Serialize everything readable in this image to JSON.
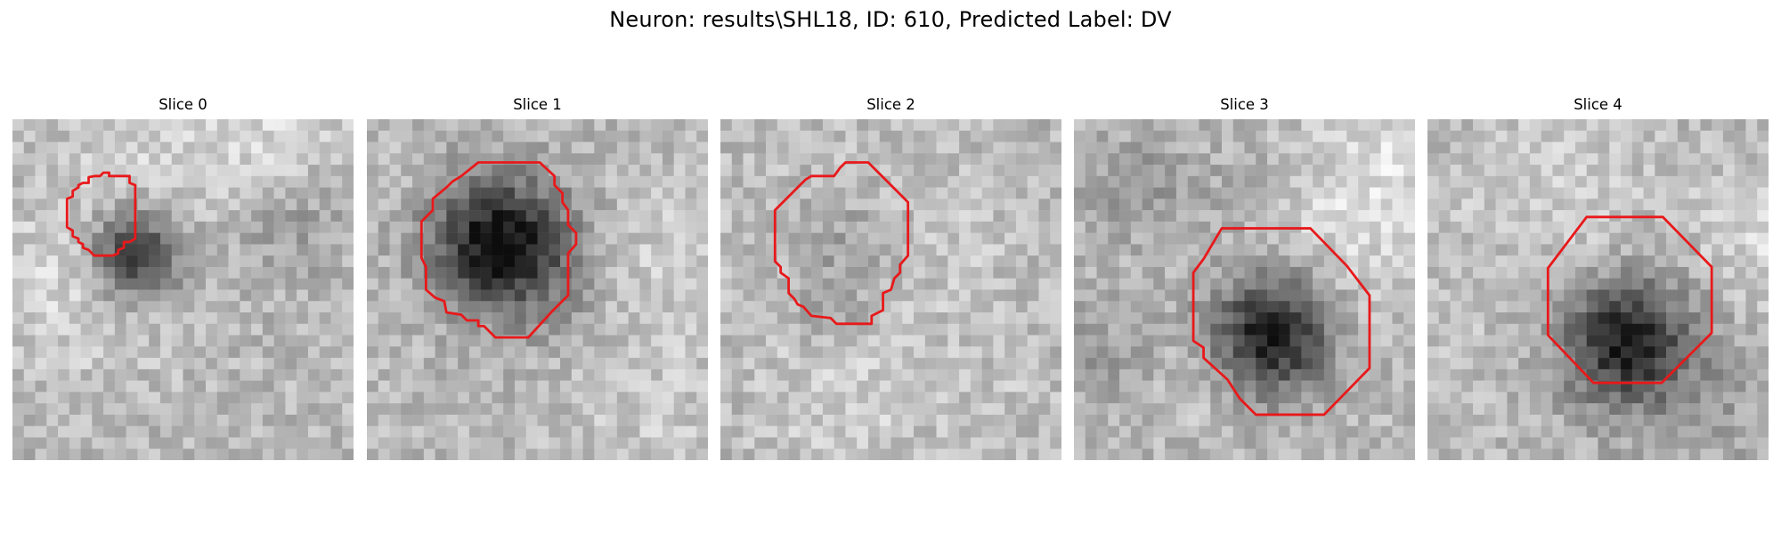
{
  "figure": {
    "title": "Neuron: results\\SHL18, ID: 610, Predicted Label: DV"
  },
  "contour_color": "#e8191b",
  "slices": [
    {
      "title": "Slice 0",
      "dark_center": [
        0.36,
        0.4
      ],
      "dark_radius": 0.13,
      "contrast": 0.75
    },
    {
      "title": "Slice 1",
      "dark_center": [
        0.38,
        0.36
      ],
      "dark_radius": 0.18,
      "contrast": 0.85
    },
    {
      "title": "Slice 2",
      "dark_center": [
        0.36,
        0.37
      ],
      "dark_radius": 0.2,
      "contrast": 0.3
    },
    {
      "title": "Slice 3",
      "dark_center": [
        0.58,
        0.63
      ],
      "dark_radius": 0.16,
      "contrast": 0.85
    },
    {
      "title": "Slice 4",
      "dark_center": [
        0.58,
        0.65
      ],
      "dark_radius": 0.17,
      "contrast": 0.8
    }
  ]
}
